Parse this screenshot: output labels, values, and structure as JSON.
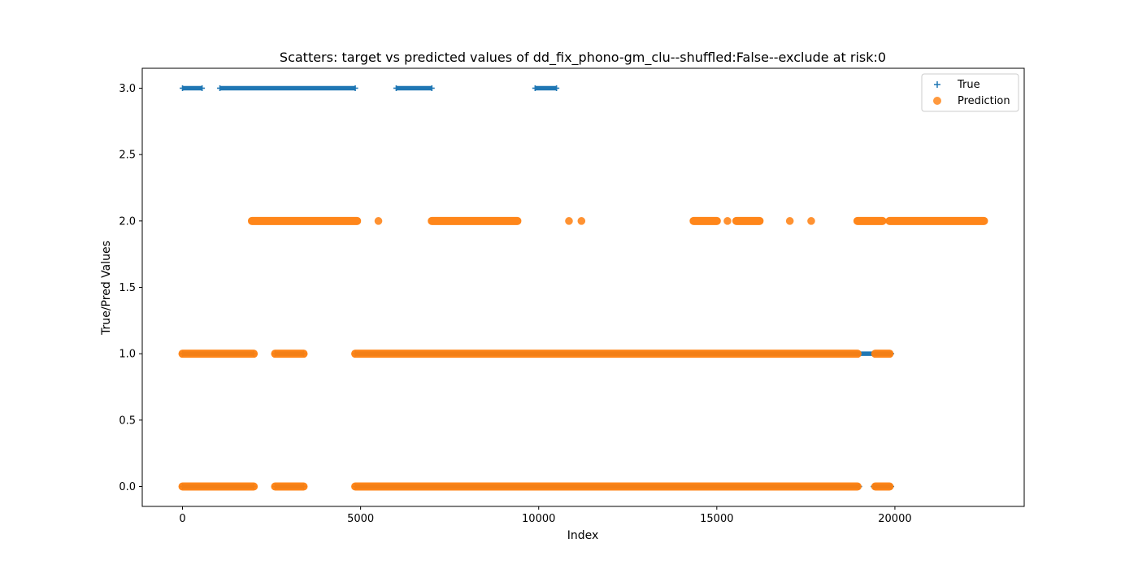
{
  "chart_data": {
    "type": "scatter",
    "title": "Scatters: target vs predicted values of dd_fix_phono-gm_clu--shuffled:False--exclude at risk:0",
    "xlabel": "Index",
    "ylabel": "True/Pred Values",
    "xlim": [
      -1130,
      23630
    ],
    "ylim": [
      -0.15,
      3.15
    ],
    "x_ticks": [
      0,
      5000,
      10000,
      15000,
      20000
    ],
    "x_tick_labels": [
      "0",
      "5000",
      "10000",
      "15000",
      "20000"
    ],
    "y_ticks": [
      0.0,
      0.5,
      1.0,
      1.5,
      2.0,
      2.5,
      3.0
    ],
    "y_tick_labels": [
      "0.0",
      "0.5",
      "1.0",
      "1.5",
      "2.0",
      "2.5",
      "3.0"
    ],
    "grid": false,
    "legend": {
      "placement": "top-right",
      "entries": [
        {
          "label": "True",
          "marker": "+",
          "color": "#1f77b4"
        },
        {
          "label": "Prediction",
          "marker": "o",
          "color": "#ff7f0e"
        }
      ]
    },
    "series": [
      {
        "name": "True",
        "marker": "plus",
        "color": "#1f77b4",
        "segments": [
          {
            "y": 3,
            "x_from": 0,
            "x_to": 550
          },
          {
            "y": 3,
            "x_from": 1050,
            "x_to": 4850
          },
          {
            "y": 3,
            "x_from": 6000,
            "x_to": 7000
          },
          {
            "y": 3,
            "x_from": 9900,
            "x_to": 10500
          },
          {
            "y": 1,
            "x_from": 0,
            "x_to": 2000
          },
          {
            "y": 1,
            "x_from": 2600,
            "x_to": 3400
          },
          {
            "y": 1,
            "x_from": 4850,
            "x_to": 19900
          },
          {
            "y": 0,
            "x_from": 0,
            "x_to": 2000
          },
          {
            "y": 0,
            "x_from": 2600,
            "x_to": 3400
          },
          {
            "y": 0,
            "x_from": 4850,
            "x_to": 19000
          },
          {
            "y": 0,
            "x_from": 19400,
            "x_to": 19900
          }
        ],
        "points": []
      },
      {
        "name": "Prediction",
        "marker": "circle",
        "color": "#ff7f0e",
        "segments": [
          {
            "y": 2,
            "x_from": 1950,
            "x_to": 4900
          },
          {
            "y": 2,
            "x_from": 7000,
            "x_to": 9400
          },
          {
            "y": 2,
            "x_from": 14350,
            "x_to": 15000
          },
          {
            "y": 2,
            "x_from": 15550,
            "x_to": 16200
          },
          {
            "y": 2,
            "x_from": 18950,
            "x_to": 19650
          },
          {
            "y": 2,
            "x_from": 19850,
            "x_to": 22500
          },
          {
            "y": 1,
            "x_from": 0,
            "x_to": 2000
          },
          {
            "y": 1,
            "x_from": 2600,
            "x_to": 3400
          },
          {
            "y": 1,
            "x_from": 4850,
            "x_to": 18950
          },
          {
            "y": 1,
            "x_from": 19450,
            "x_to": 19850
          },
          {
            "y": 0,
            "x_from": 0,
            "x_to": 2000
          },
          {
            "y": 0,
            "x_from": 2600,
            "x_to": 3400
          },
          {
            "y": 0,
            "x_from": 4850,
            "x_to": 18950
          },
          {
            "y": 0,
            "x_from": 19450,
            "x_to": 19850
          }
        ],
        "points": [
          {
            "x": 5500,
            "y": 2
          },
          {
            "x": 10850,
            "y": 2
          },
          {
            "x": 11200,
            "y": 2
          },
          {
            "x": 15300,
            "y": 2
          },
          {
            "x": 17050,
            "y": 2
          },
          {
            "x": 17650,
            "y": 2
          }
        ]
      }
    ]
  }
}
